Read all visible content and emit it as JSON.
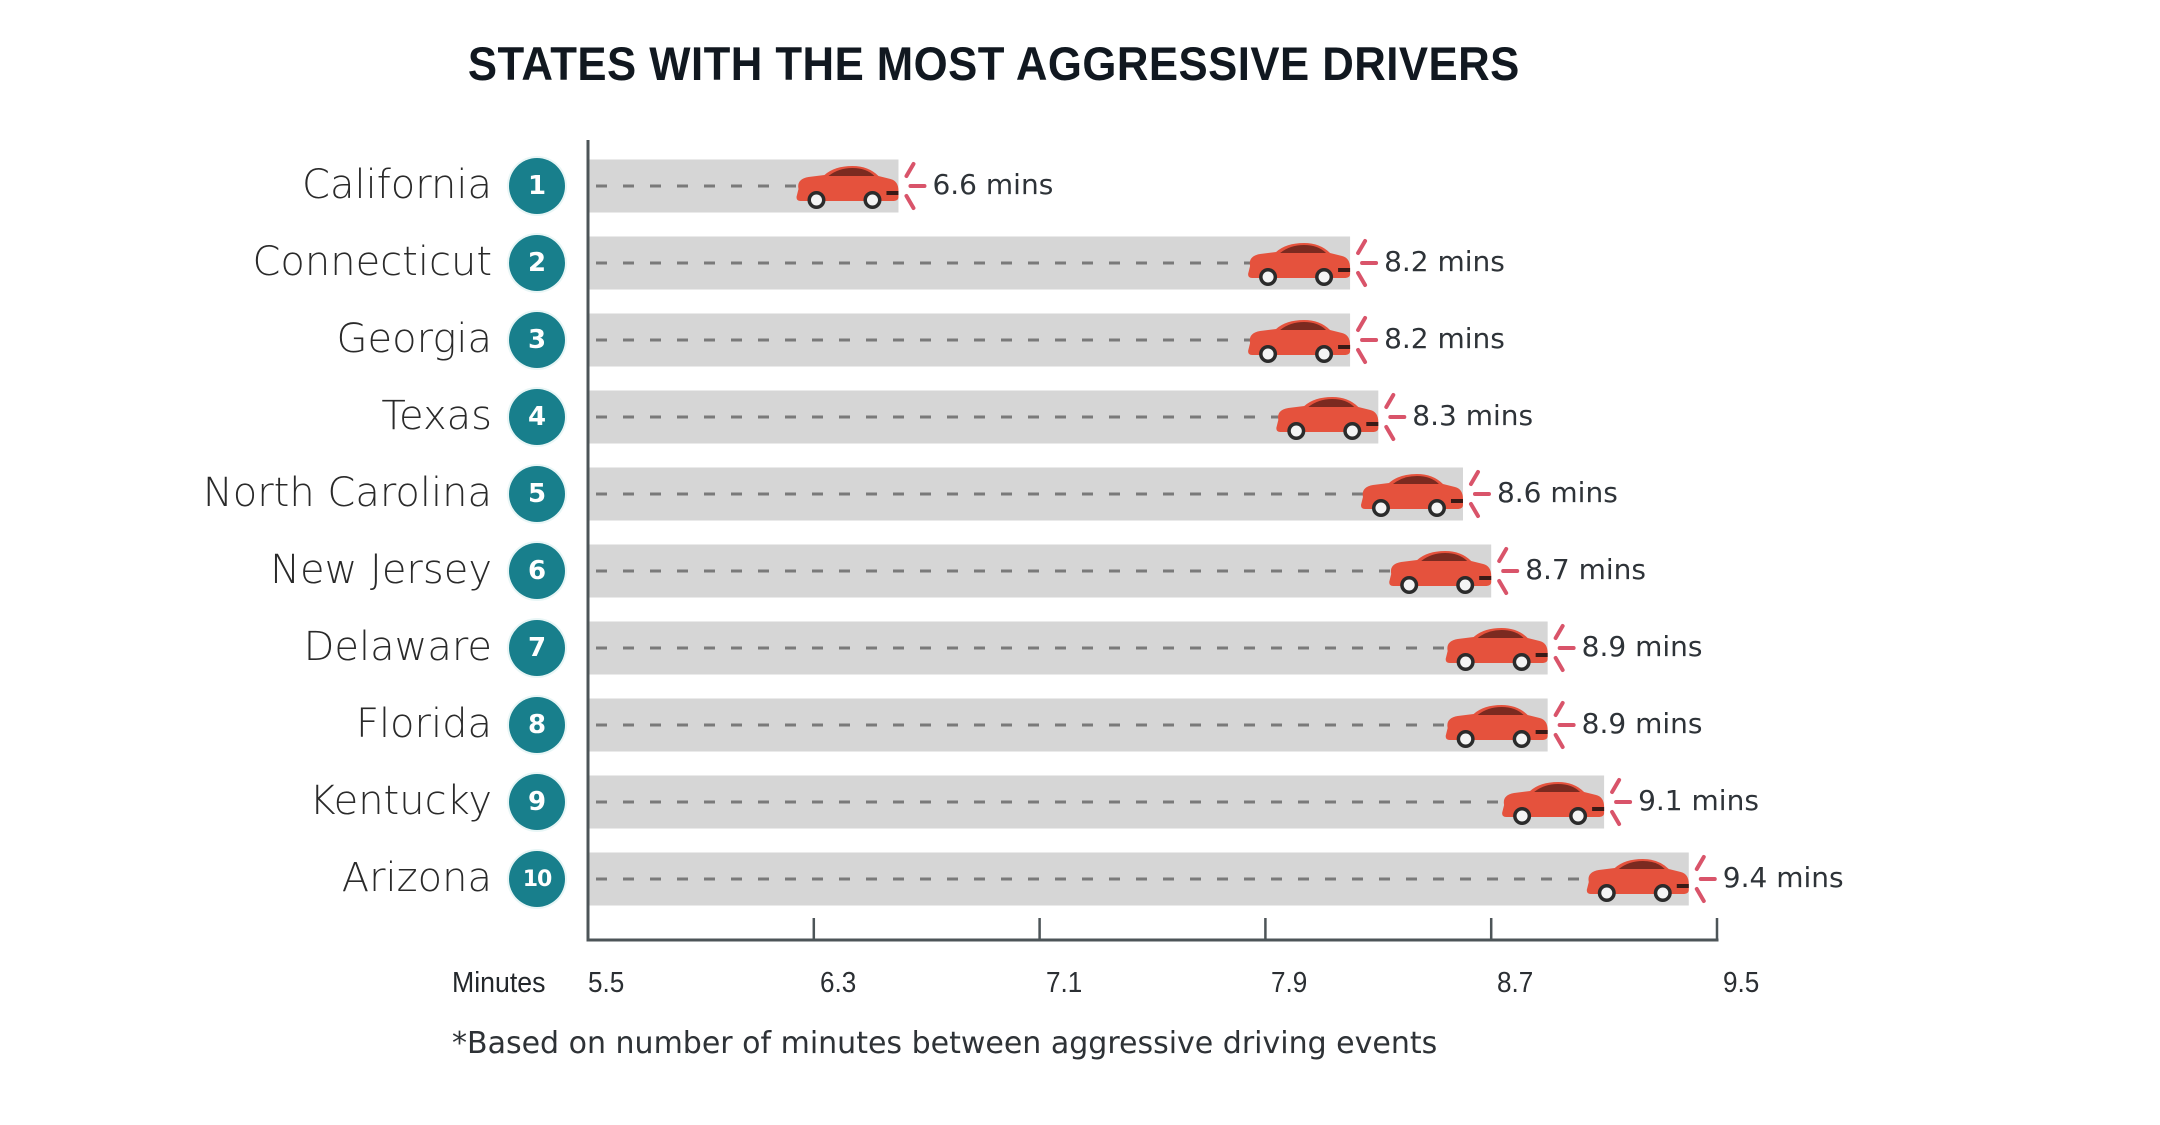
{
  "chart_data": {
    "type": "bar",
    "orientation": "horizontal",
    "title": "STATES WITH THE MOST AGGRESSIVE DRIVERS",
    "xlabel": "Minutes",
    "ylabel": "",
    "xlim": [
      5.5,
      9.5
    ],
    "x_ticks": [
      "5.5",
      "6.3",
      "7.1",
      "7.9",
      "8.7",
      "9.5"
    ],
    "x_tick_values": [
      5.5,
      6.3,
      7.1,
      7.9,
      8.7,
      9.5
    ],
    "categories": [
      "California",
      "Connecticut",
      "Georgia",
      "Texas",
      "North Carolina",
      "New Jersey",
      "Delaware",
      "Florida",
      "Kentucky",
      "Arizona"
    ],
    "ranks": [
      "1",
      "2",
      "3",
      "4",
      "5",
      "6",
      "7",
      "8",
      "9",
      "10"
    ],
    "values": [
      6.6,
      8.2,
      8.2,
      8.3,
      8.6,
      8.7,
      8.9,
      8.9,
      9.1,
      9.4
    ],
    "value_labels": [
      "6.6 mins",
      "8.2 mins",
      "8.2 mins",
      "8.3 mins",
      "8.6 mins",
      "8.7 mins",
      "8.9 mins",
      "8.9 mins",
      "9.1 mins",
      "9.4 mins"
    ],
    "footnote": "*Based on number of minutes between aggressive driving events",
    "grid": false,
    "legend": "none"
  },
  "colors": {
    "bar": "#d6d6d6",
    "dash": "#7a7a7a",
    "axis": "#4d5558",
    "badge": "#187f8c",
    "car_body": "#e5523d",
    "car_roof": "#7b2a20",
    "burst": "#d9546a",
    "text": "#2a2a2a"
  },
  "icons": {
    "marker": "car-icon",
    "burst": "speed-burst-icon"
  }
}
